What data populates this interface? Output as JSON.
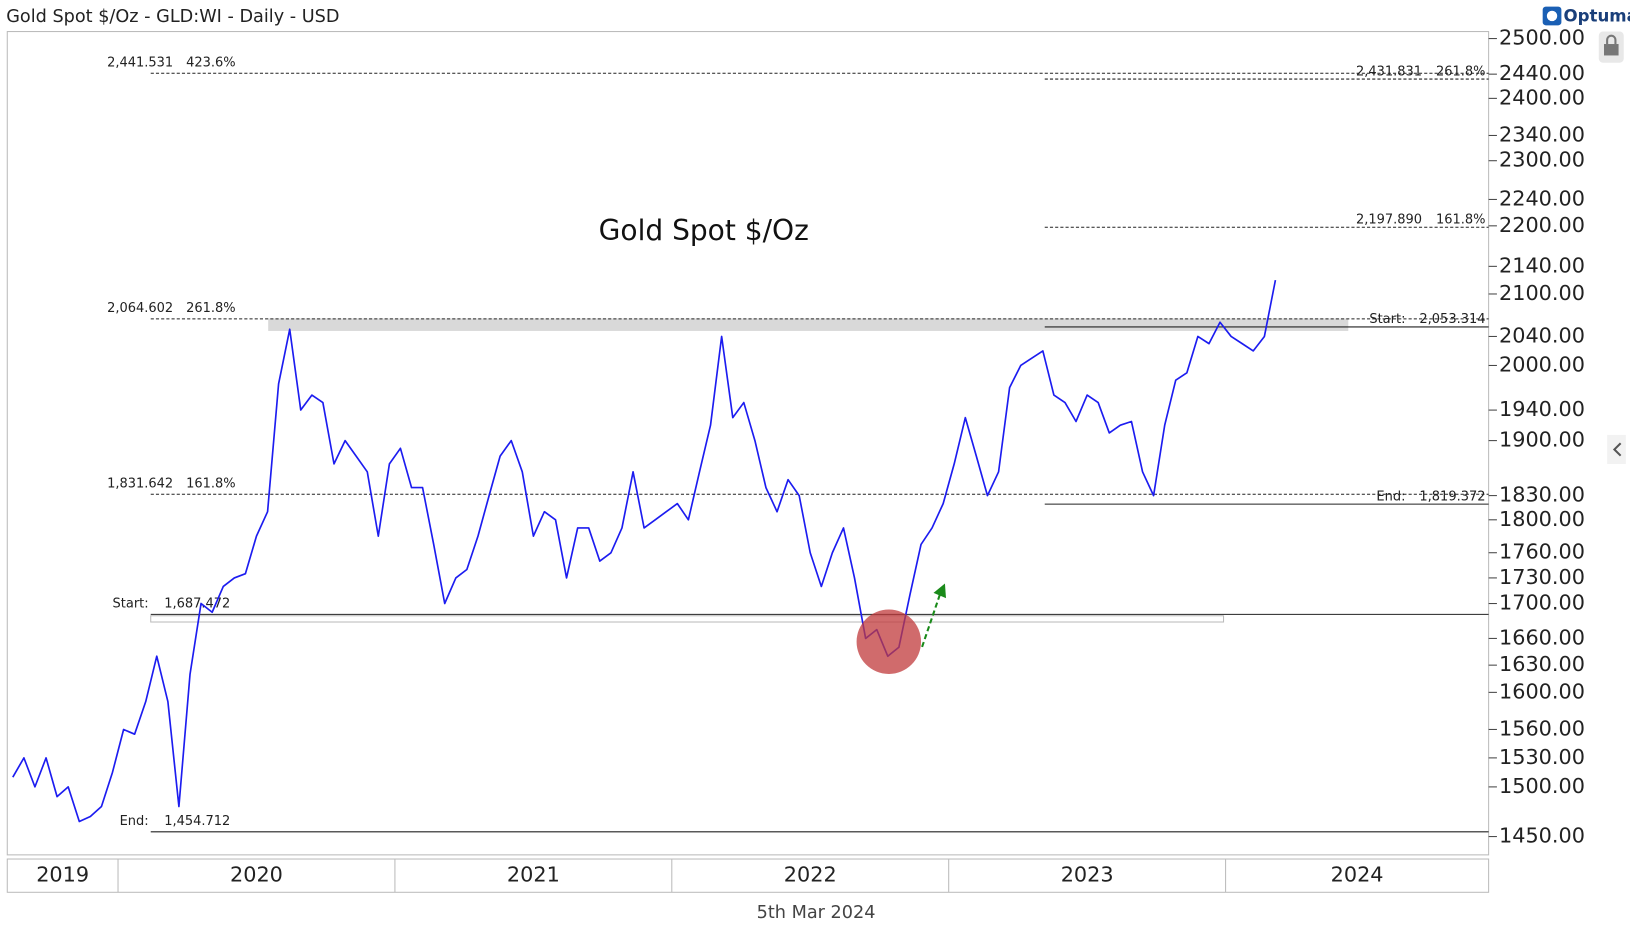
{
  "chart_data": {
    "type": "line",
    "header": "Gold Spot $/Oz - GLD:WI - Daily - USD",
    "brand": "Optuma",
    "title": "Gold Spot $/Oz",
    "date_label": "5th Mar 2024",
    "color": "#1c1cf0",
    "log_scale": true,
    "xlim": [
      2019.6,
      2024.95
    ],
    "xbands": [
      2019,
      2020,
      2021,
      2022,
      2023,
      2024
    ],
    "ylim": [
      1432,
      2512
    ],
    "yticks": [
      {
        "value": 2500,
        "label": "2500.00"
      },
      {
        "value": 2440,
        "label": "2440.00"
      },
      {
        "value": 2400,
        "label": "2400.00"
      },
      {
        "value": 2340,
        "label": "2340.00"
      },
      {
        "value": 2300,
        "label": "2300.00"
      },
      {
        "value": 2240,
        "label": "2240.00"
      },
      {
        "value": 2200,
        "label": "2200.00"
      },
      {
        "value": 2140,
        "label": "2140.00"
      },
      {
        "value": 2100,
        "label": "2100.00"
      },
      {
        "value": 2040,
        "label": "2040.00"
      },
      {
        "value": 2000,
        "label": "2000.00"
      },
      {
        "value": 1940,
        "label": "1940.00"
      },
      {
        "value": 1900,
        "label": "1900.00"
      },
      {
        "value": 1830,
        "label": "1830.00"
      },
      {
        "value": 1800,
        "label": "1800.00"
      },
      {
        "value": 1760,
        "label": "1760.00"
      },
      {
        "value": 1730,
        "label": "1730.00"
      },
      {
        "value": 1700,
        "label": "1700.00"
      },
      {
        "value": 1660,
        "label": "1660.00"
      },
      {
        "value": 1630,
        "label": "1630.00"
      },
      {
        "value": 1600,
        "label": "1600.00"
      },
      {
        "value": 1560,
        "label": "1560.00"
      },
      {
        "value": 1530,
        "label": "1530.00"
      },
      {
        "value": 1500,
        "label": "1500.00"
      },
      {
        "value": 1450,
        "label": "1450.00"
      }
    ],
    "levels": [
      {
        "value": 2441.531,
        "label": "2,441.531",
        "ratio": "423.6%",
        "style": "dashed",
        "side": "left"
      },
      {
        "value": 2064.602,
        "label": "2,064.602",
        "ratio": "261.8%",
        "style": "dashed",
        "side": "left"
      },
      {
        "value": 1831.642,
        "label": "1,831.642",
        "ratio": "161.8%",
        "style": "dashed",
        "side": "left"
      },
      {
        "value": 1687.472,
        "label": "1,687.472",
        "tag": "Start:",
        "style": "solid",
        "side": "left"
      },
      {
        "value": 1454.712,
        "label": "1,454.712",
        "tag": "End:",
        "style": "solid",
        "side": "left"
      },
      {
        "value": 2431.831,
        "label": "2,431.831",
        "ratio": "261.8%",
        "style": "dashed",
        "side": "right"
      },
      {
        "value": 2197.89,
        "label": "2,197.890",
        "ratio": "161.8%",
        "style": "dashed",
        "side": "right"
      },
      {
        "value": 2053.314,
        "label": "2,053.314",
        "tag": "Start:",
        "style": "solid",
        "side": "right"
      },
      {
        "value": 1819.372,
        "label": "1,819.372",
        "tag": "End:",
        "style": "solid",
        "side": "right"
      }
    ],
    "x": [
      2019.62,
      2019.66,
      2019.7,
      2019.74,
      2019.78,
      2019.82,
      2019.86,
      2019.9,
      2019.94,
      2019.98,
      2020.02,
      2020.06,
      2020.1,
      2020.14,
      2020.18,
      2020.22,
      2020.26,
      2020.3,
      2020.34,
      2020.38,
      2020.42,
      2020.46,
      2020.5,
      2020.54,
      2020.58,
      2020.62,
      2020.66,
      2020.7,
      2020.74,
      2020.78,
      2020.82,
      2020.86,
      2020.9,
      2020.94,
      2020.98,
      2021.02,
      2021.06,
      2021.1,
      2021.14,
      2021.18,
      2021.22,
      2021.26,
      2021.3,
      2021.34,
      2021.38,
      2021.42,
      2021.46,
      2021.5,
      2021.54,
      2021.58,
      2021.62,
      2021.66,
      2021.7,
      2021.74,
      2021.78,
      2021.82,
      2021.86,
      2021.9,
      2021.94,
      2021.98,
      2022.02,
      2022.06,
      2022.1,
      2022.14,
      2022.18,
      2022.22,
      2022.26,
      2022.3,
      2022.34,
      2022.38,
      2022.42,
      2022.46,
      2022.5,
      2022.54,
      2022.58,
      2022.62,
      2022.66,
      2022.7,
      2022.74,
      2022.78,
      2022.82,
      2022.86,
      2022.9,
      2022.94,
      2022.98,
      2023.02,
      2023.06,
      2023.1,
      2023.14,
      2023.18,
      2023.22,
      2023.26,
      2023.3,
      2023.34,
      2023.38,
      2023.42,
      2023.46,
      2023.5,
      2023.54,
      2023.58,
      2023.62,
      2023.66,
      2023.7,
      2023.74,
      2023.78,
      2023.82,
      2023.86,
      2023.9,
      2023.94,
      2023.98,
      2024.02,
      2024.06,
      2024.1,
      2024.14,
      2024.18
    ],
    "values": [
      1510,
      1530,
      1500,
      1530,
      1490,
      1500,
      1465,
      1470,
      1480,
      1515,
      1560,
      1555,
      1590,
      1640,
      1590,
      1480,
      1620,
      1700,
      1690,
      1720,
      1730,
      1735,
      1780,
      1810,
      1975,
      2050,
      1940,
      1960,
      1950,
      1870,
      1900,
      1880,
      1860,
      1780,
      1870,
      1890,
      1840,
      1840,
      1770,
      1700,
      1730,
      1740,
      1780,
      1830,
      1880,
      1900,
      1860,
      1780,
      1810,
      1800,
      1730,
      1790,
      1790,
      1750,
      1760,
      1790,
      1860,
      1790,
      1800,
      1810,
      1820,
      1800,
      1860,
      1920,
      2040,
      1930,
      1950,
      1900,
      1840,
      1810,
      1850,
      1830,
      1760,
      1720,
      1760,
      1790,
      1730,
      1660,
      1670,
      1640,
      1650,
      1710,
      1770,
      1790,
      1820,
      1870,
      1930,
      1880,
      1830,
      1860,
      1970,
      2000,
      2010,
      2020,
      1960,
      1950,
      1925,
      1960,
      1950,
      1910,
      1920,
      1925,
      1860,
      1830,
      1920,
      1980,
      1990,
      2040,
      2030,
      2060,
      2040,
      2030,
      2020,
      2040,
      2120
    ]
  }
}
